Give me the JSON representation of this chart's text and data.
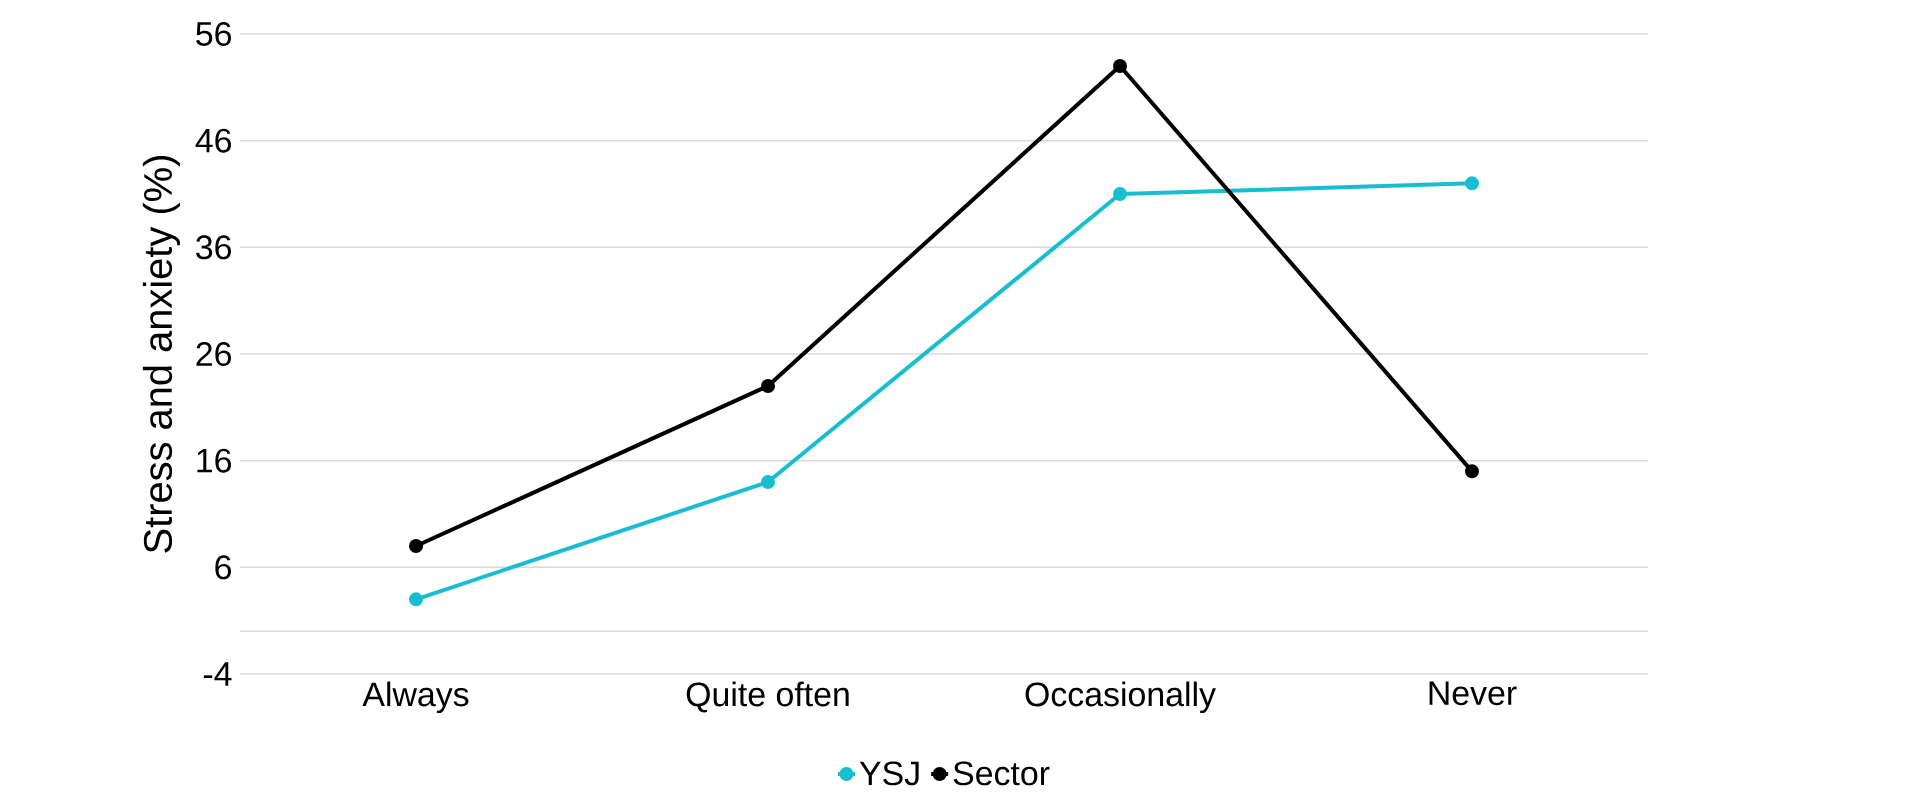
{
  "chart_data": {
    "type": "line",
    "ylabel": "Stress and anxiety (%)",
    "categories": [
      "Always",
      "Quite often",
      "Occasionally",
      "Never"
    ],
    "series": [
      {
        "name": "YSJ",
        "color": "#17becf",
        "values": [
          3,
          14,
          41,
          42
        ]
      },
      {
        "name": "Sector",
        "color": "#000000",
        "values": [
          8,
          23,
          53,
          15
        ]
      }
    ],
    "ylim": [
      -4,
      56
    ],
    "yticks": [
      -4,
      6,
      16,
      26,
      36,
      46,
      56
    ],
    "ref_lines": [
      {
        "axis": "y",
        "value": 0,
        "color": "#d9d9d9"
      }
    ],
    "grid": "y",
    "legend": "bottom",
    "marker": "circle",
    "line_style": "solid"
  }
}
